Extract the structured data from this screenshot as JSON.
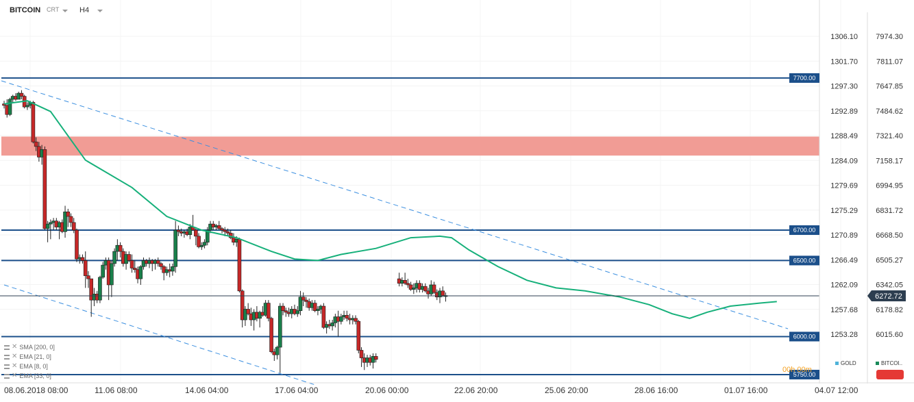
{
  "header": {
    "symbol": "BITCOIN",
    "sub": "CRT",
    "timeframe": "H4"
  },
  "indicators": [
    {
      "label": "SMA [200, 0]"
    },
    {
      "label": "EMA [21, 0]"
    },
    {
      "label": "EMA [8, 0]"
    },
    {
      "label": "EMA [33, 0]"
    }
  ],
  "legend": [
    {
      "label": "GOLD",
      "color": "#4fb3d9"
    },
    {
      "label": "BITCOI..",
      "color": "#1a8a5a"
    }
  ],
  "countdown": "00h 00m",
  "colors": {
    "bull": "#1a7f4b",
    "bear": "#c62828",
    "ema": "#16b07a",
    "level": "#1b4f8a",
    "trend": "#3b8fe0",
    "zone": "#f19c95",
    "current": "#2d3e50"
  },
  "chart_data": {
    "type": "candlestick",
    "right_axis": [
      "7974.30",
      "7811.07",
      "7647.85",
      "7484.62",
      "7321.40",
      "7158.17",
      "6994.95",
      "6831.72",
      "6668.50",
      "6505.27",
      "6342.05",
      "6178.82",
      "6015.60"
    ],
    "left_axis": [
      "1306.10",
      "1301.70",
      "1297.30",
      "1292.89",
      "1288.49",
      "1284.09",
      "1279.69",
      "1275.29",
      "1270.89",
      "1266.49",
      "1262.09",
      "1257.68",
      "1253.28"
    ],
    "x_labels": [
      "08.06.2018 08:00",
      "11.06 08:00",
      "14.06 04:00",
      "17.06 04:00",
      "20.06 00:00",
      "22.06 20:00",
      "25.06 20:00",
      "28.06 16:00",
      "01.07 16:00",
      "04.07 12:00"
    ],
    "current_price": "6272.72",
    "levels": [
      {
        "label": "7700.00",
        "value": 7700
      },
      {
        "label": "6700.00",
        "value": 6700
      },
      {
        "label": "6500.00",
        "value": 6500
      },
      {
        "label": "6000.00",
        "value": 6000
      },
      {
        "label": "5750.00",
        "value": 5750
      }
    ],
    "zone": {
      "from": 7190,
      "to": 7315
    },
    "candles": [
      [
        7530,
        7550,
        7500,
        7520
      ],
      [
        7520,
        7560,
        7440,
        7460
      ],
      [
        7460,
        7570,
        7450,
        7560
      ],
      [
        7560,
        7590,
        7540,
        7580
      ],
      [
        7580,
        7600,
        7550,
        7560
      ],
      [
        7560,
        7610,
        7560,
        7600
      ],
      [
        7600,
        7620,
        7560,
        7580
      ],
      [
        7580,
        7590,
        7500,
        7510
      ],
      [
        7510,
        7540,
        7490,
        7520
      ],
      [
        7520,
        7550,
        7500,
        7540
      ],
      [
        7540,
        7550,
        7270,
        7280
      ],
      [
        7280,
        7310,
        7220,
        7250
      ],
      [
        7250,
        7280,
        7150,
        7180
      ],
      [
        7180,
        7260,
        7130,
        7230
      ],
      [
        7230,
        7250,
        6700,
        6710
      ],
      [
        6710,
        6760,
        6620,
        6740
      ],
      [
        6740,
        6770,
        6640,
        6750
      ],
      [
        6750,
        6780,
        6700,
        6760
      ],
      [
        6760,
        6780,
        6700,
        6720
      ],
      [
        6720,
        6760,
        6640,
        6750
      ],
      [
        6750,
        6770,
        6680,
        6690
      ],
      [
        6690,
        6860,
        6650,
        6820
      ],
      [
        6820,
        6840,
        6720,
        6790
      ],
      [
        6790,
        6810,
        6720,
        6750
      ],
      [
        6750,
        6780,
        6680,
        6700
      ],
      [
        6700,
        6710,
        6490,
        6510
      ],
      [
        6510,
        6540,
        6480,
        6520
      ],
      [
        6520,
        6540,
        6480,
        6500
      ],
      [
        6500,
        6560,
        6320,
        6400
      ],
      [
        6400,
        6430,
        6320,
        6380
      ],
      [
        6380,
        6380,
        6130,
        6240
      ],
      [
        6240,
        6320,
        6200,
        6280
      ],
      [
        6280,
        6300,
        6220,
        6240
      ],
      [
        6240,
        6400,
        6220,
        6390
      ],
      [
        6390,
        6490,
        6380,
        6470
      ],
      [
        6470,
        6520,
        6440,
        6500
      ],
      [
        6500,
        6520,
        6240,
        6340
      ],
      [
        6340,
        6500,
        6260,
        6480
      ],
      [
        6480,
        6580,
        6460,
        6560
      ],
      [
        6560,
        6640,
        6500,
        6600
      ],
      [
        6600,
        6620,
        6520,
        6560
      ],
      [
        6560,
        6580,
        6460,
        6480
      ],
      [
        6480,
        6560,
        6440,
        6540
      ],
      [
        6540,
        6560,
        6490,
        6500
      ],
      [
        6500,
        6540,
        6420,
        6450
      ],
      [
        6450,
        6500,
        6420,
        6440
      ],
      [
        6440,
        6460,
        6350,
        6380
      ],
      [
        6380,
        6470,
        6340,
        6460
      ],
      [
        6460,
        6520,
        6440,
        6500
      ],
      [
        6500,
        6510,
        6460,
        6480
      ],
      [
        6480,
        6520,
        6450,
        6500
      ],
      [
        6500,
        6510,
        6430,
        6480
      ],
      [
        6480,
        6510,
        6440,
        6500
      ],
      [
        6500,
        6520,
        6460,
        6480
      ],
      [
        6480,
        6490,
        6440,
        6460
      ],
      [
        6460,
        6470,
        6370,
        6420
      ],
      [
        6420,
        6460,
        6400,
        6440
      ],
      [
        6440,
        6480,
        6390,
        6430
      ],
      [
        6430,
        6480,
        6400,
        6460
      ],
      [
        6460,
        6760,
        6420,
        6700
      ],
      [
        6700,
        6730,
        6660,
        6690
      ],
      [
        6690,
        6710,
        6660,
        6680
      ],
      [
        6680,
        6700,
        6650,
        6690
      ],
      [
        6690,
        6710,
        6660,
        6670
      ],
      [
        6670,
        6740,
        6640,
        6720
      ],
      [
        6720,
        6800,
        6700,
        6700
      ],
      [
        6700,
        6720,
        6600,
        6660
      ],
      [
        6660,
        6680,
        6580,
        6590
      ],
      [
        6590,
        6620,
        6570,
        6600
      ],
      [
        6600,
        6640,
        6580,
        6620
      ],
      [
        6620,
        6720,
        6600,
        6700
      ],
      [
        6700,
        6760,
        6680,
        6740
      ],
      [
        6740,
        6760,
        6700,
        6720
      ],
      [
        6720,
        6740,
        6700,
        6730
      ],
      [
        6730,
        6760,
        6700,
        6710
      ],
      [
        6710,
        6720,
        6680,
        6700
      ],
      [
        6700,
        6720,
        6660,
        6690
      ],
      [
        6690,
        6710,
        6660,
        6680
      ],
      [
        6680,
        6700,
        6640,
        6650
      ],
      [
        6650,
        6680,
        6600,
        6620
      ],
      [
        6620,
        6660,
        6590,
        6640
      ],
      [
        6640,
        6650,
        6290,
        6300
      ],
      [
        6300,
        6310,
        6060,
        6110
      ],
      [
        6110,
        6200,
        6070,
        6180
      ],
      [
        6180,
        6220,
        6140,
        6150
      ],
      [
        6150,
        6190,
        6070,
        6110
      ],
      [
        6110,
        6180,
        6040,
        6160
      ],
      [
        6160,
        6200,
        6100,
        6120
      ],
      [
        6120,
        6170,
        6060,
        6160
      ],
      [
        6160,
        6200,
        6130,
        6140
      ],
      [
        6140,
        6240,
        6130,
        6220
      ],
      [
        6220,
        6240,
        6100,
        6120
      ],
      [
        6120,
        6130,
        5890,
        5900
      ],
      [
        5900,
        5920,
        5840,
        5880
      ],
      [
        5880,
        5940,
        5850,
        5930
      ],
      [
        5930,
        6220,
        5760,
        6200
      ],
      [
        6200,
        6220,
        6140,
        6170
      ],
      [
        6170,
        6190,
        6130,
        6160
      ],
      [
        6160,
        6190,
        6130,
        6150
      ],
      [
        6150,
        6200,
        6120,
        6180
      ],
      [
        6180,
        6210,
        6140,
        6150
      ],
      [
        6150,
        6200,
        6130,
        6170
      ],
      [
        6170,
        6300,
        6140,
        6260
      ],
      [
        6260,
        6290,
        6200,
        6240
      ],
      [
        6240,
        6260,
        6190,
        6230
      ],
      [
        6230,
        6250,
        6170,
        6190
      ],
      [
        6190,
        6240,
        6170,
        6220
      ],
      [
        6220,
        6240,
        6160,
        6170
      ],
      [
        6170,
        6200,
        6140,
        6180
      ],
      [
        6180,
        6210,
        6150,
        6200
      ],
      [
        6200,
        6220,
        6050,
        6060
      ],
      [
        6060,
        6100,
        6020,
        6080
      ],
      [
        6080,
        6110,
        6050,
        6070
      ],
      [
        6070,
        6110,
        6040,
        6090
      ],
      [
        6090,
        6150,
        6060,
        6130
      ],
      [
        6130,
        6170,
        6000,
        6100
      ],
      [
        6100,
        6150,
        6080,
        6130
      ],
      [
        6130,
        6170,
        6110,
        6140
      ],
      [
        6140,
        6170,
        6100,
        6120
      ],
      [
        6120,
        6150,
        6080,
        6110
      ],
      [
        6110,
        6140,
        6080,
        6120
      ],
      [
        6120,
        6140,
        6080,
        6100
      ],
      [
        6100,
        6110,
        5890,
        5910
      ],
      [
        5910,
        5930,
        5800,
        5860
      ],
      [
        5860,
        5890,
        5780,
        5830
      ],
      [
        5830,
        5880,
        5800,
        5860
      ],
      [
        5860,
        5880,
        5810,
        5830
      ],
      [
        5830,
        5890,
        5790,
        5870
      ],
      [
        5870,
        5890,
        5830,
        5850
      ],
      null,
      null,
      null,
      null,
      null,
      null,
      null,
      [
        6380,
        6420,
        6330,
        6350
      ],
      [
        6350,
        6390,
        6330,
        6370
      ],
      [
        6370,
        6420,
        6340,
        6350
      ],
      [
        6350,
        6380,
        6320,
        6340
      ],
      [
        6340,
        6360,
        6300,
        6310
      ],
      [
        6310,
        6350,
        6280,
        6320
      ],
      [
        6320,
        6370,
        6290,
        6350
      ],
      [
        6350,
        6370,
        6290,
        6310
      ],
      [
        6310,
        6350,
        6290,
        6330
      ],
      [
        6330,
        6350,
        6290,
        6300
      ],
      [
        6300,
        6320,
        6250,
        6280
      ],
      [
        6280,
        6370,
        6270,
        6340
      ],
      [
        6340,
        6360,
        6280,
        6290
      ],
      [
        6290,
        6310,
        6240,
        6260
      ],
      [
        6260,
        6320,
        6220,
        6300
      ],
      [
        6300,
        6330,
        6260,
        6270
      ],
      [
        6270,
        6290,
        6230,
        6270
      ]
    ],
    "ema": [
      [
        0,
        7530
      ],
      [
        8,
        7550
      ],
      [
        16,
        7480
      ],
      [
        28,
        7160
      ],
      [
        44,
        6980
      ],
      [
        56,
        6790
      ],
      [
        68,
        6700
      ],
      [
        80,
        6650
      ],
      [
        92,
        6560
      ],
      [
        100,
        6510
      ],
      [
        108,
        6500
      ],
      [
        116,
        6540
      ],
      [
        128,
        6580
      ],
      [
        140,
        6650
      ],
      [
        150,
        6660
      ],
      [
        154,
        6650
      ],
      [
        160,
        6570
      ],
      [
        170,
        6460
      ],
      [
        180,
        6370
      ],
      [
        190,
        6320
      ],
      [
        200,
        6300
      ],
      [
        212,
        6260
      ],
      [
        222,
        6210
      ],
      [
        230,
        6150
      ],
      [
        236,
        6120
      ],
      [
        242,
        6160
      ],
      [
        250,
        6200
      ],
      [
        260,
        6220
      ],
      [
        266,
        6230
      ]
    ]
  }
}
